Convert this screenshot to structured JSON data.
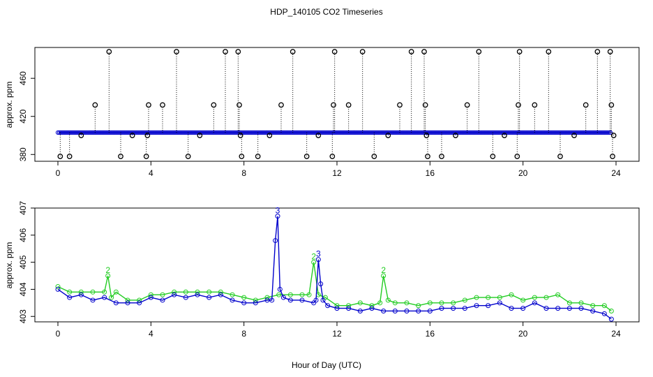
{
  "title": "HDP_140105  CO2 Timeseries",
  "xlabel": "Hour of Day (UTC)",
  "colors": {
    "raw": "#000000",
    "blue": "#0000cc",
    "green": "#22cc22",
    "cyan": "#00bbbb"
  },
  "chart_data": [
    {
      "type": "scatter",
      "ylabel": "approx. ppm",
      "xlim": [
        0,
        24
      ],
      "ylim": [
        378,
        488
      ],
      "x_ticks": [
        "0",
        "4",
        "8",
        "12",
        "16",
        "20",
        "24"
      ],
      "y_ticks": [
        "380",
        "420",
        "460"
      ],
      "x_tick_values": [
        0,
        4,
        8,
        12,
        16,
        20,
        24
      ],
      "y_tick_values": [
        380,
        420,
        460
      ],
      "grid": false,
      "baseline": 403,
      "series": [
        {
          "x": [
            0.1,
            0.5,
            1.0,
            1.6,
            2.2,
            2.7,
            3.2,
            3.8,
            3.85,
            3.9,
            4.5,
            5.1,
            5.6,
            6.1,
            6.7,
            7.2,
            7.75,
            7.8,
            7.85,
            7.9,
            8.6,
            9.1,
            9.6,
            10.1,
            10.7,
            11.2,
            11.8,
            11.85,
            11.9,
            12.5,
            13.1,
            13.6,
            14.2,
            14.7,
            15.2,
            15.75,
            15.8,
            15.85,
            15.9,
            16.5,
            17.1,
            17.6,
            18.1,
            18.7,
            19.2,
            19.75,
            19.8,
            19.85,
            20.5,
            21.1,
            21.6,
            22.2,
            22.7,
            23.2,
            23.75,
            23.8,
            23.85,
            23.9
          ],
          "values": [
            378,
            378,
            400,
            432,
            488,
            378,
            400,
            378,
            400,
            432,
            432,
            488,
            378,
            400,
            432,
            488,
            488,
            432,
            400,
            378,
            378,
            400,
            432,
            488,
            378,
            400,
            378,
            432,
            488,
            432,
            488,
            378,
            400,
            432,
            488,
            488,
            432,
            400,
            378,
            378,
            400,
            432,
            488,
            378,
            400,
            378,
            432,
            488,
            432,
            488,
            378,
            400,
            432,
            488,
            488,
            432,
            378,
            400
          ]
        }
      ]
    },
    {
      "type": "scatter",
      "ylabel": "approx. ppm",
      "xlim": [
        0,
        24
      ],
      "ylim": [
        402.8,
        407.0
      ],
      "x_ticks": [
        "0",
        "4",
        "8",
        "12",
        "16",
        "20",
        "24"
      ],
      "y_ticks": [
        "403",
        "404",
        "405",
        "406",
        "407"
      ],
      "x_tick_values": [
        0,
        4,
        8,
        12,
        16,
        20,
        24
      ],
      "y_tick_values": [
        403,
        404,
        405,
        406,
        407
      ],
      "grid": false,
      "series": [
        {
          "name": "3",
          "x": [
            0,
            0.5,
            1,
            1.5,
            2,
            2.5,
            3,
            3.5,
            4,
            4.5,
            5,
            5.5,
            6,
            6.5,
            7,
            7.5,
            8,
            8.5,
            9,
            9.2,
            9.35,
            9.45,
            9.55,
            9.7,
            10,
            10.5,
            11,
            11.1,
            11.2,
            11.3,
            11.4,
            11.6,
            12,
            12.5,
            13,
            13.5,
            14,
            14.5,
            15,
            15.5,
            16,
            16.5,
            17,
            17.5,
            18,
            18.5,
            19,
            19.5,
            20,
            20.5,
            21,
            21.5,
            22,
            22.5,
            23,
            23.5,
            23.8
          ],
          "values": [
            404.0,
            403.7,
            403.8,
            403.6,
            403.7,
            403.5,
            403.5,
            403.5,
            403.7,
            403.6,
            403.8,
            403.7,
            403.8,
            403.7,
            403.8,
            403.6,
            403.5,
            403.5,
            403.6,
            403.6,
            405.8,
            406.7,
            404.0,
            403.7,
            403.6,
            403.6,
            403.5,
            403.6,
            405.1,
            404.2,
            403.6,
            403.4,
            403.3,
            403.3,
            403.2,
            403.3,
            403.2,
            403.2,
            403.2,
            403.2,
            403.2,
            403.3,
            403.3,
            403.3,
            403.4,
            403.4,
            403.5,
            403.3,
            403.3,
            403.5,
            403.3,
            403.3,
            403.3,
            403.3,
            403.2,
            403.1,
            402.9
          ]
        },
        {
          "name": "2",
          "x": [
            0,
            0.5,
            1,
            1.5,
            2,
            2.15,
            2.3,
            2.5,
            3,
            3.5,
            4,
            4.5,
            5,
            5.5,
            6,
            6.5,
            7,
            7.5,
            8,
            8.5,
            9,
            9.5,
            10,
            10.5,
            10.8,
            11.0,
            11.2,
            11.5,
            12,
            12.5,
            13,
            13.5,
            13.85,
            14.0,
            14.2,
            14.5,
            15,
            15.5,
            16,
            16.5,
            17,
            17.5,
            18,
            18.5,
            19,
            19.5,
            20,
            20.5,
            21,
            21.5,
            22,
            22.5,
            23,
            23.5,
            23.8
          ],
          "values": [
            404.1,
            403.9,
            403.9,
            403.9,
            403.9,
            404.5,
            403.7,
            403.9,
            403.6,
            403.6,
            403.8,
            403.8,
            403.9,
            403.9,
            403.9,
            403.9,
            403.9,
            403.8,
            403.7,
            403.6,
            403.7,
            403.8,
            403.8,
            403.8,
            403.8,
            405.0,
            403.8,
            403.7,
            403.4,
            403.4,
            403.5,
            403.4,
            403.5,
            404.5,
            403.6,
            403.5,
            403.5,
            403.4,
            403.5,
            403.5,
            403.5,
            403.6,
            403.7,
            403.7,
            403.7,
            403.8,
            403.6,
            403.7,
            403.7,
            403.8,
            403.5,
            403.5,
            403.4,
            403.4,
            403.2
          ]
        }
      ]
    }
  ]
}
